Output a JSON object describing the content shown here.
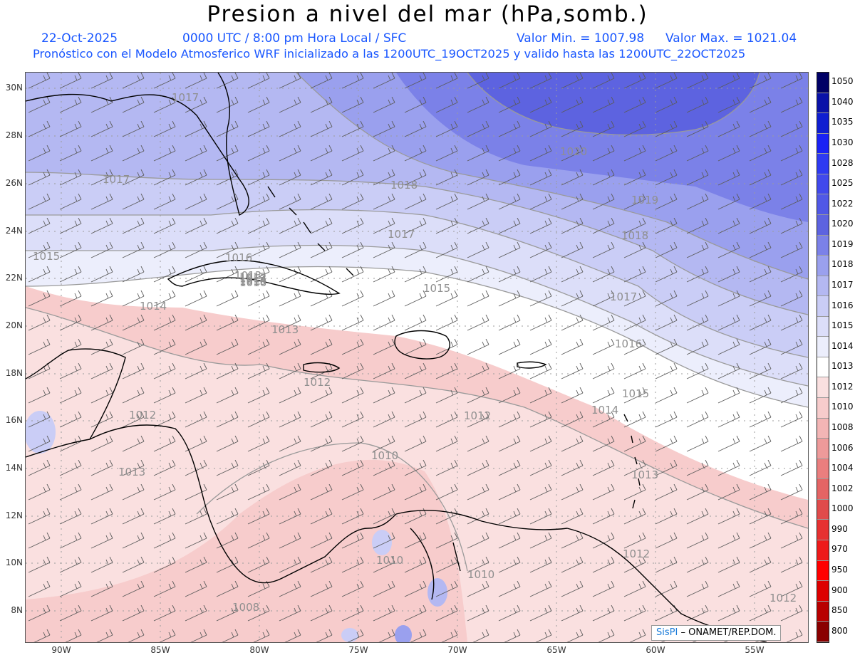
{
  "header": {
    "title": "Presion a nivel del mar (hPa,somb.)",
    "date": "22-Oct-2025",
    "time": "0000 UTC / 8:00 pm Hora Local / SFC",
    "min_label": "Valor Min. = 1007.98",
    "max_label": "Valor Max. = 1021.04",
    "model_line": "Pronóstico con el Modelo Atmosferico WRF inicializado a las 1200UTC_19OCT2025 y valido hasta las  1200UTC_22OCT2025"
  },
  "axes": {
    "lat_labels": [
      "30N",
      "28N",
      "26N",
      "24N",
      "22N",
      "20N",
      "18N",
      "16N",
      "14N",
      "12N",
      "10N",
      "8N"
    ],
    "lon_labels": [
      "90W",
      "85W",
      "80W",
      "75W",
      "70W",
      "65W",
      "60W",
      "55W"
    ]
  },
  "colorbar": {
    "levels": [
      "1050",
      "1040",
      "1035",
      "1030",
      "1028",
      "1025",
      "1022",
      "1020",
      "1019",
      "1018",
      "1017",
      "1016",
      "1015",
      "1014",
      "1013",
      "1012",
      "1010",
      "1008",
      "1006",
      "1004",
      "1002",
      "1000",
      "990",
      "970",
      "950",
      "900",
      "850",
      "800"
    ],
    "colors": [
      "#000066",
      "#0a12a8",
      "#0f1ed1",
      "#1a22f5",
      "#2e3af2",
      "#4149ec",
      "#5058e6",
      "#5d63e0",
      "#7b81e8",
      "#9aa0ee",
      "#b4b8f2",
      "#cacdf6",
      "#dcdef9",
      "#eceefc",
      "#ffffff",
      "#fae0e0",
      "#f7cccc",
      "#f3b5b5",
      "#ee9a9a",
      "#ea7e7e",
      "#e46464",
      "#e04b4b",
      "#e63131",
      "#ee1a1a",
      "#ff0000",
      "#dd0000",
      "#b80000",
      "#8a0000"
    ]
  },
  "contour_labels": [
    {
      "text": "1017"
    },
    {
      "text": "1017"
    },
    {
      "text": "1015"
    },
    {
      "text": "1014"
    },
    {
      "text": "1013"
    },
    {
      "text": "1012"
    },
    {
      "text": "1012"
    },
    {
      "text": "1013"
    },
    {
      "text": "1010"
    },
    {
      "text": "1012"
    },
    {
      "text": "1010"
    },
    {
      "text": "1010"
    },
    {
      "text": "1018"
    },
    {
      "text": "1017"
    },
    {
      "text": "1016"
    },
    {
      "text": "1015"
    },
    {
      "text": "1020"
    },
    {
      "text": "1019"
    },
    {
      "text": "1018"
    },
    {
      "text": "1017"
    },
    {
      "text": "1016"
    },
    {
      "text": "1015"
    },
    {
      "text": "1014"
    },
    {
      "text": "1013"
    },
    {
      "text": "1012"
    },
    {
      "text": "1012"
    },
    {
      "text": "1008"
    },
    {
      "text": "1013"
    },
    {
      "text": "1016"
    },
    {
      "text": "1015"
    },
    {
      "text": "1014"
    },
    {
      "text": "1013"
    },
    {
      "text": "1012"
    }
  ],
  "credit": {
    "brand": "SisPI",
    "text": "– ONAMET/REP.DOM."
  }
}
